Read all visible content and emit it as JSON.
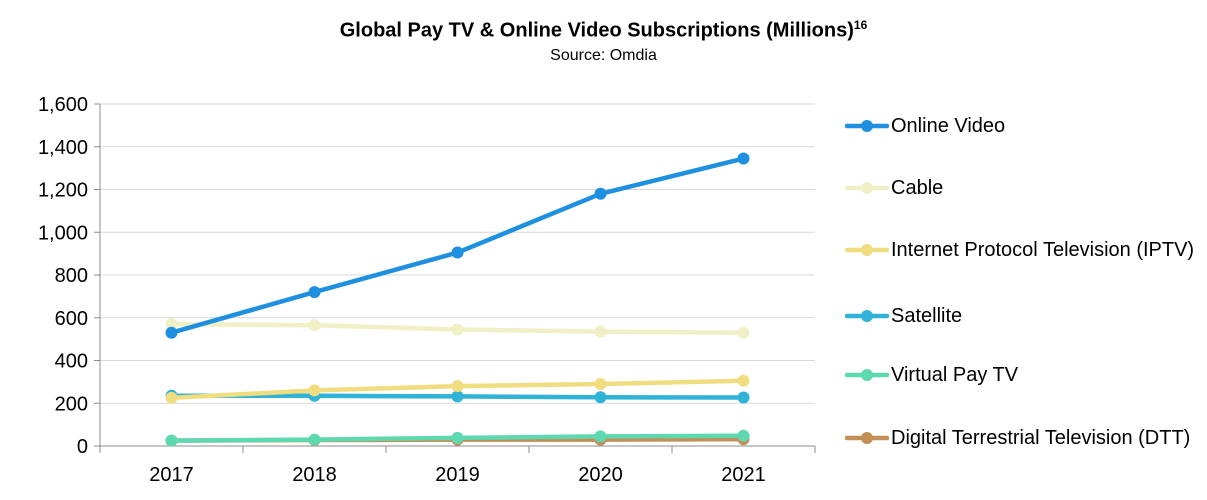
{
  "title": "Global Pay TV & Online Video Subscriptions (Millions)",
  "title_sup": "16",
  "subtitle": "Source: Omdia",
  "chart_data": {
    "type": "line",
    "title": "Global Pay TV & Online Video Subscriptions (Millions)",
    "subtitle": "Source: Omdia",
    "categories": [
      "2017",
      "2018",
      "2019",
      "2020",
      "2021"
    ],
    "ylim": [
      0,
      1600
    ],
    "yticks": [
      0,
      200,
      400,
      600,
      800,
      1000,
      1200,
      1400,
      1600
    ],
    "ytick_labels": [
      "0",
      "200",
      "400",
      "600",
      "800",
      "1,000",
      "1,200",
      "1,400",
      "1,600"
    ],
    "grid": "horizontal",
    "legend": "right",
    "series": [
      {
        "name": "Online Video",
        "color": "#1f8fe0",
        "values": [
          530,
          720,
          905,
          1180,
          1345
        ]
      },
      {
        "name": "Cable",
        "color": "#f1efc6",
        "values": [
          570,
          565,
          545,
          535,
          530
        ]
      },
      {
        "name": "Internet Protocol Television (IPTV)",
        "color": "#f0dd80",
        "values": [
          225,
          260,
          280,
          290,
          305
        ]
      },
      {
        "name": "Satellite",
        "color": "#2fb3d6",
        "values": [
          235,
          235,
          232,
          228,
          227
        ]
      },
      {
        "name": "Virtual Pay TV",
        "color": "#5ed8b0",
        "values": [
          25,
          30,
          38,
          45,
          48
        ]
      },
      {
        "name": "Digital Terrestrial Television (DTT)",
        "color": "#c28f55",
        "values": [
          25,
          28,
          30,
          30,
          32
        ]
      }
    ]
  }
}
